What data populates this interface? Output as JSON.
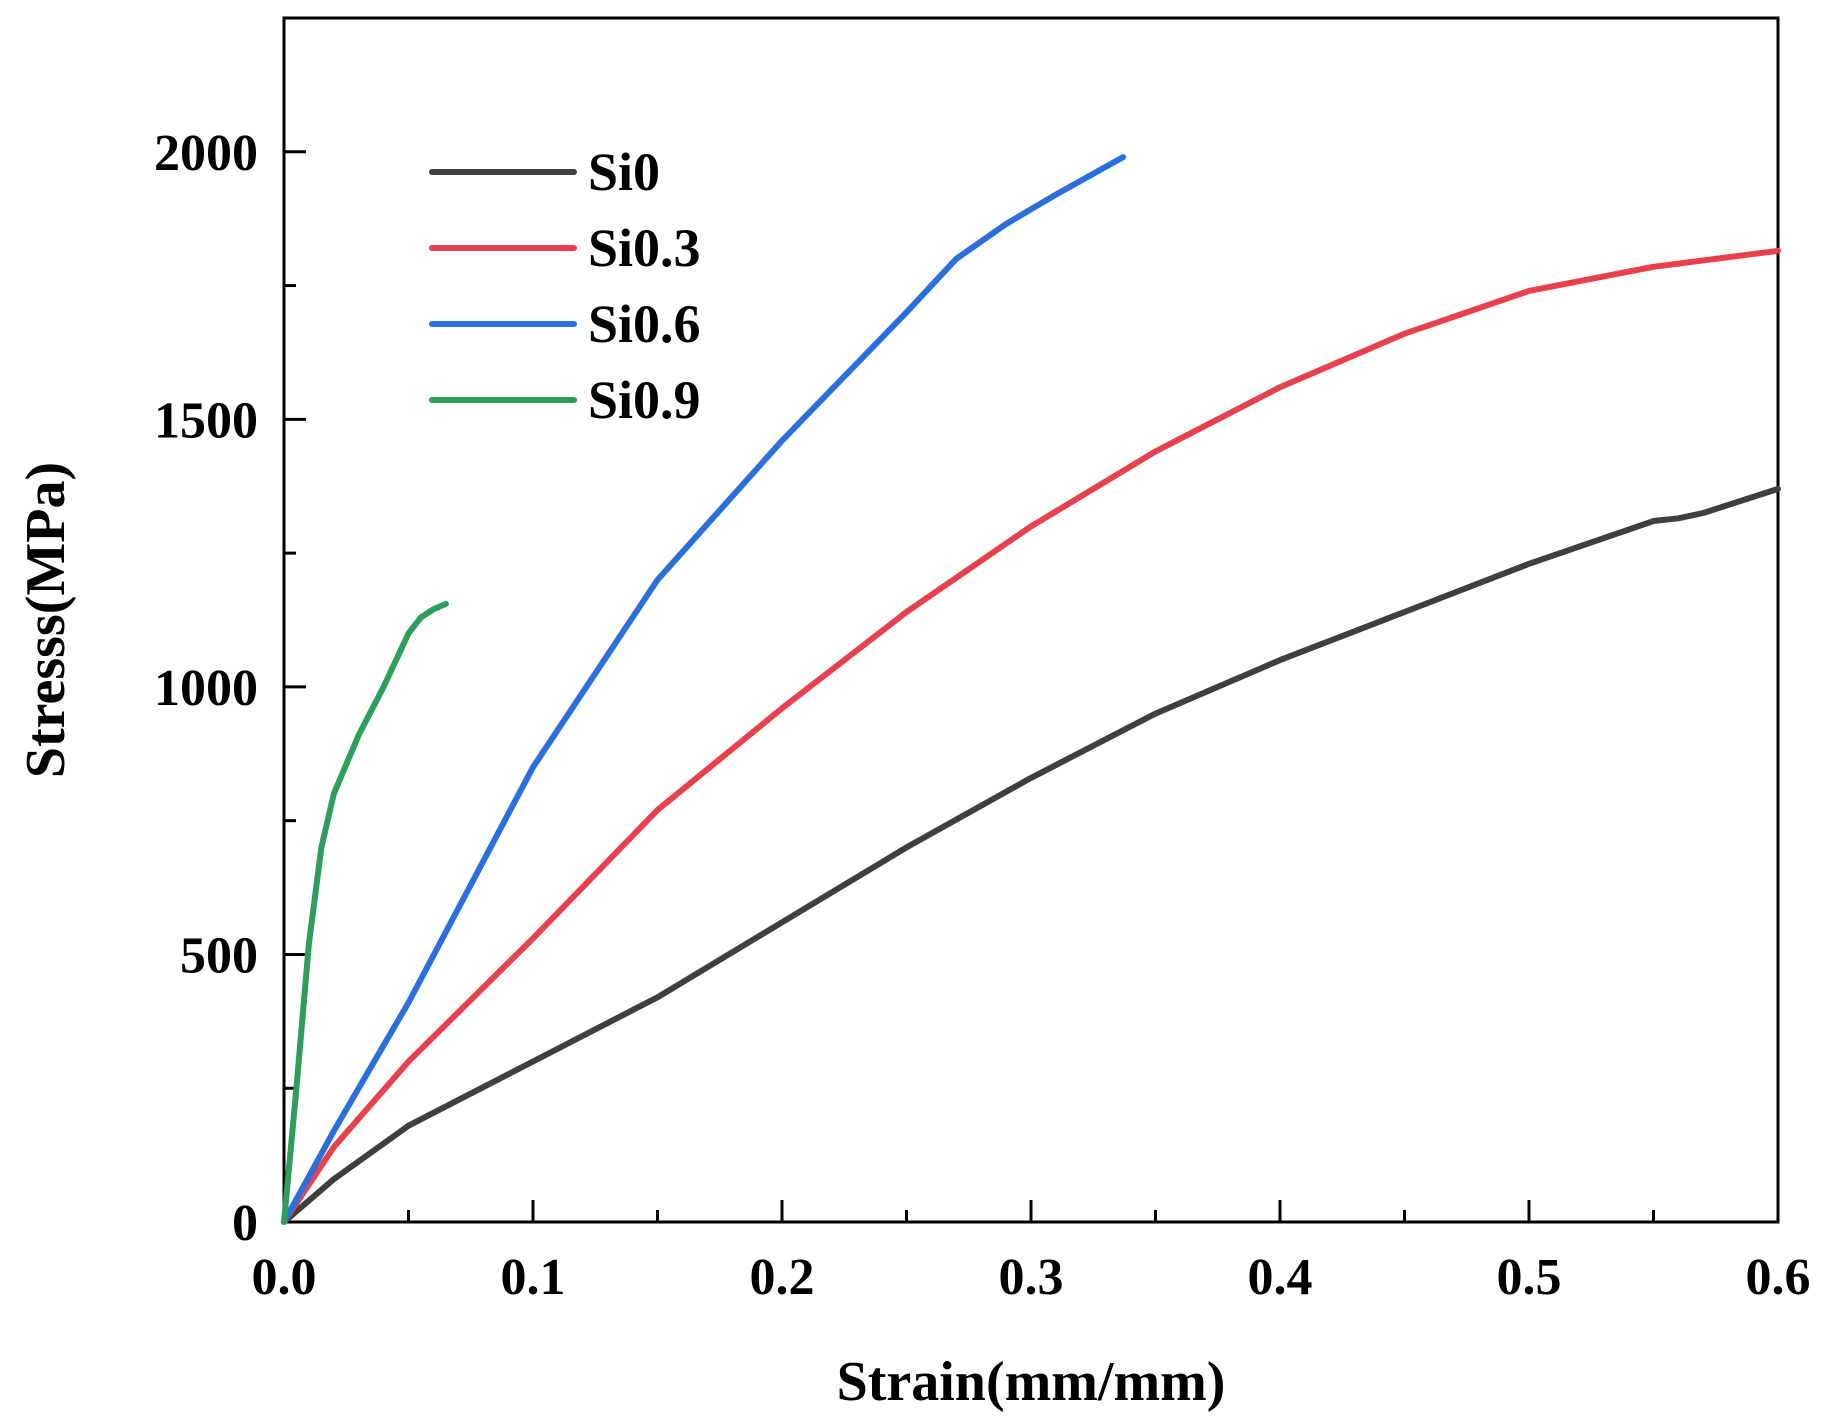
{
  "chart_data": {
    "type": "line",
    "title": "",
    "xlabel": "Strain(mm/mm)",
    "ylabel": "Stresss(MPa)",
    "xlim": [
      0,
      0.6
    ],
    "ylim": [
      0,
      2250
    ],
    "xticks": [
      0.0,
      0.1,
      0.2,
      0.3,
      0.4,
      0.5,
      0.6
    ],
    "xtick_labels": [
      "0.0",
      "0.1",
      "0.2",
      "0.3",
      "0.4",
      "0.5",
      "0.6"
    ],
    "yticks": [
      0,
      500,
      1000,
      1500,
      2000
    ],
    "ytick_labels": [
      "0",
      "500",
      "1000",
      "1500",
      "2000"
    ],
    "grid": false,
    "legend_position": "top-left",
    "series": [
      {
        "name": "Si0",
        "color": "#3f3f3f",
        "points": [
          [
            0,
            0
          ],
          [
            0.02,
            80
          ],
          [
            0.05,
            180
          ],
          [
            0.1,
            300
          ],
          [
            0.15,
            420
          ],
          [
            0.2,
            560
          ],
          [
            0.25,
            700
          ],
          [
            0.3,
            830
          ],
          [
            0.35,
            950
          ],
          [
            0.4,
            1050
          ],
          [
            0.45,
            1140
          ],
          [
            0.5,
            1230
          ],
          [
            0.55,
            1310
          ],
          [
            0.56,
            1315
          ],
          [
            0.57,
            1325
          ],
          [
            0.6,
            1370
          ]
        ]
      },
      {
        "name": "Si0.3",
        "color": "#e8414d",
        "points": [
          [
            0,
            0
          ],
          [
            0.02,
            140
          ],
          [
            0.05,
            300
          ],
          [
            0.1,
            530
          ],
          [
            0.15,
            770
          ],
          [
            0.2,
            960
          ],
          [
            0.25,
            1140
          ],
          [
            0.3,
            1300
          ],
          [
            0.35,
            1440
          ],
          [
            0.4,
            1560
          ],
          [
            0.45,
            1660
          ],
          [
            0.5,
            1740
          ],
          [
            0.55,
            1785
          ],
          [
            0.6,
            1815
          ]
        ]
      },
      {
        "name": "Si0.6",
        "color": "#2a6fdc",
        "points": [
          [
            0,
            0
          ],
          [
            0.02,
            170
          ],
          [
            0.05,
            410
          ],
          [
            0.1,
            850
          ],
          [
            0.15,
            1200
          ],
          [
            0.2,
            1460
          ],
          [
            0.25,
            1700
          ],
          [
            0.27,
            1800
          ],
          [
            0.29,
            1865
          ],
          [
            0.31,
            1920
          ],
          [
            0.337,
            1990
          ]
        ]
      },
      {
        "name": "Si0.9",
        "color": "#2e9e5b",
        "points": [
          [
            0,
            0
          ],
          [
            0.005,
            250
          ],
          [
            0.01,
            520
          ],
          [
            0.015,
            700
          ],
          [
            0.02,
            800
          ],
          [
            0.03,
            910
          ],
          [
            0.04,
            1000
          ],
          [
            0.05,
            1100
          ],
          [
            0.055,
            1130
          ],
          [
            0.06,
            1145
          ],
          [
            0.065,
            1155
          ]
        ]
      }
    ]
  }
}
